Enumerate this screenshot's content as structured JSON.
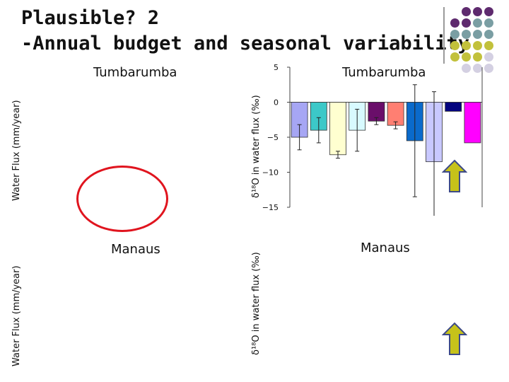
{
  "title_line1": "Plausible? 2",
  "title_line2": "-Annual budget and seasonal variability",
  "left_axis_label": "Water Flux (mm/year)",
  "right_axis_label": "δ¹⁸O in water flux (‰)",
  "site_top": "Tumbarumba",
  "site_bottom": "Manaus",
  "colors": {
    "dot_purple": "#5e2a6e",
    "dot_teal": "#7a9ea3",
    "dot_olive": "#c2c13b",
    "dot_lilac": "#d4d0e2",
    "ellipse": "#e0141e",
    "arrow_fill": "#c6c21a",
    "arrow_stroke": "#3d4a88"
  },
  "chart_data": {
    "type": "bar",
    "ylabel": "δ¹⁸O in water flux (‰)",
    "ylim": [
      -15,
      5
    ],
    "yticks": [
      5,
      0,
      -5,
      -10,
      -15
    ],
    "grid": false,
    "series": [
      {
        "value": -5.0,
        "error": 1.8,
        "color": "#a6a6f4"
      },
      {
        "value": -4.0,
        "error": 1.8,
        "color": "#3cc8c8"
      },
      {
        "value": -7.5,
        "error": 0.5,
        "color": "#ffffd0"
      },
      {
        "value": -4.0,
        "error": 3.0,
        "color": "#d8faff"
      },
      {
        "value": -2.7,
        "error": 0.5,
        "color": "#6a0e6a"
      },
      {
        "value": -3.3,
        "error": 0.5,
        "color": "#ff7f72"
      },
      {
        "value": -5.5,
        "error": 8.0,
        "color": "#0a6acb"
      },
      {
        "value": -8.5,
        "error": 10.0,
        "color": "#c8c8ff"
      },
      {
        "value": -1.3,
        "error": 0,
        "color": "#03037e"
      },
      {
        "value": -5.8,
        "error": 0,
        "color": "#ff00ff"
      }
    ]
  }
}
